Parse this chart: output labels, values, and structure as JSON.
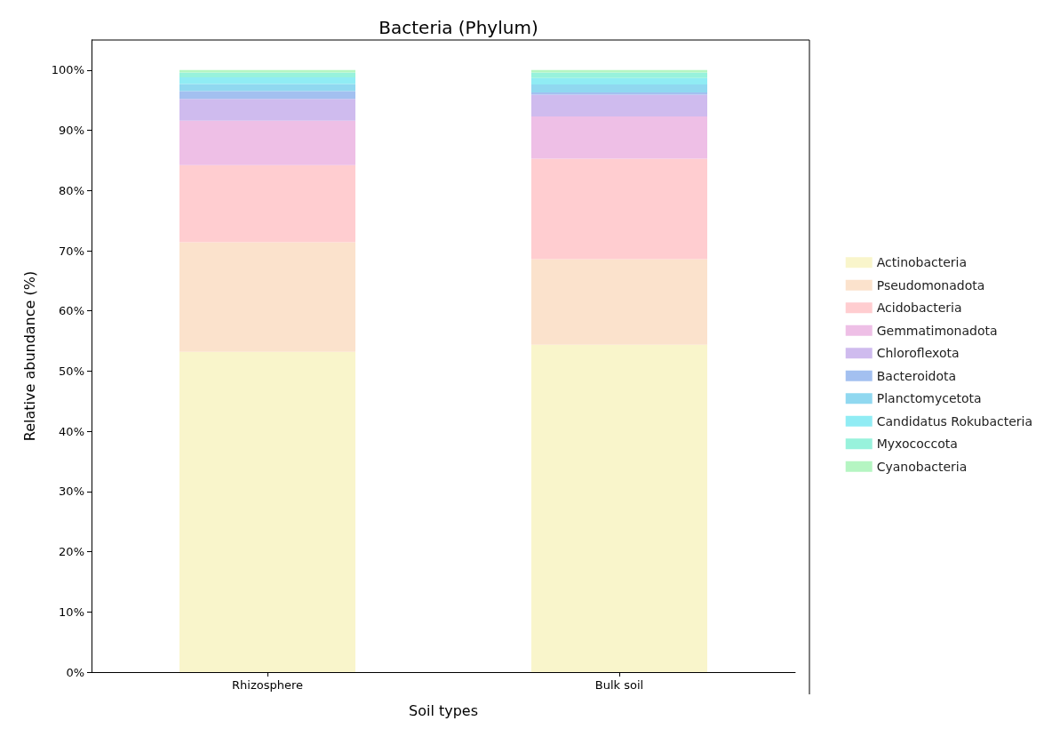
{
  "chart_data": {
    "type": "bar",
    "title": "Bacteria (Phylum)",
    "xlabel": "Soil types",
    "ylabel": "Relative abundance (%)",
    "categories": [
      "Rhizosphere",
      "Bulk soil"
    ],
    "stacked": true,
    "series": [
      {
        "name": "Actinobacteria",
        "color": "#f9f5cb",
        "values": [
          53.2,
          54.4
        ]
      },
      {
        "name": "Pseudomonadota",
        "color": "#fbe2cc",
        "values": [
          18.2,
          14.2
        ]
      },
      {
        "name": "Acidobacteria",
        "color": "#ffcdd0",
        "values": [
          12.8,
          16.7
        ]
      },
      {
        "name": "Gemmatimonadota",
        "color": "#eebfe6",
        "values": [
          7.4,
          7.0
        ]
      },
      {
        "name": "Chloroflexota",
        "color": "#cfbbee",
        "values": [
          3.6,
          3.6
        ]
      },
      {
        "name": "Bacteroidota",
        "color": "#a3c0f0",
        "values": [
          1.3,
          0.4
        ]
      },
      {
        "name": "Planctomycetota",
        "color": "#90d8f0",
        "values": [
          1.2,
          1.3
        ]
      },
      {
        "name": "Candidatus Rokubacteria",
        "color": "#90ecf4",
        "values": [
          1.1,
          1.1
        ]
      },
      {
        "name": "Myxococcota",
        "color": "#98f2dc",
        "values": [
          0.8,
          0.9
        ]
      },
      {
        "name": "Cyanobacteria",
        "color": "#b5f5c2",
        "values": [
          0.4,
          0.4
        ]
      }
    ],
    "ylim": [
      0,
      105
    ],
    "yticks": [
      {
        "value": 0,
        "label": "0%"
      },
      {
        "value": 10,
        "label": "10%"
      },
      {
        "value": 20,
        "label": "20%"
      },
      {
        "value": 30,
        "label": "30%"
      },
      {
        "value": 40,
        "label": "40%"
      },
      {
        "value": 50,
        "label": "50%"
      },
      {
        "value": 60,
        "label": "60%"
      },
      {
        "value": 70,
        "label": "70%"
      },
      {
        "value": 80,
        "label": "80%"
      },
      {
        "value": 90,
        "label": "90%"
      },
      {
        "value": 100,
        "label": "100%"
      }
    ],
    "grid": false,
    "legend": "right"
  }
}
